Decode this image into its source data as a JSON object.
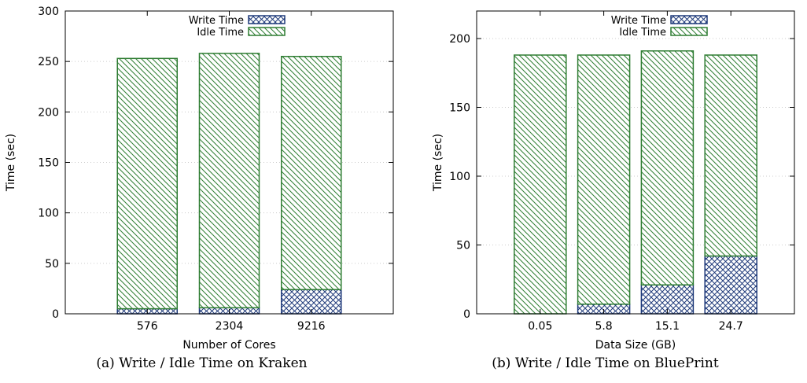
{
  "chart_data": [
    {
      "type": "bar",
      "stacked": true,
      "categories": [
        "576",
        "2304",
        "9216"
      ],
      "series": [
        {
          "name": "Write Time",
          "values": [
            5,
            6,
            24
          ],
          "color": "#1f3a7a",
          "pattern": "crosshatch"
        },
        {
          "name": "Idle Time",
          "values": [
            248,
            252,
            231
          ],
          "color": "#2e7d32",
          "pattern": "diagonal"
        }
      ],
      "xlabel": "Number of Cores",
      "ylabel": "Time (sec)",
      "ylim": [
        0,
        300
      ],
      "yticks": [
        0,
        50,
        100,
        150,
        200,
        250,
        300
      ],
      "grid": true,
      "legend": "top-center",
      "caption": "(a)  Write / Idle Time on Kraken"
    },
    {
      "type": "bar",
      "stacked": true,
      "categories": [
        "0.05",
        "5.8",
        "15.1",
        "24.7"
      ],
      "series": [
        {
          "name": "Write Time",
          "values": [
            0,
            7,
            21,
            42
          ],
          "color": "#1f3a7a",
          "pattern": "crosshatch"
        },
        {
          "name": "Idle Time",
          "values": [
            188,
            181,
            170,
            146
          ],
          "color": "#2e7d32",
          "pattern": "diagonal"
        }
      ],
      "xlabel": "Data Size (GB)",
      "ylabel": "Time (sec)",
      "ylim": [
        0,
        220
      ],
      "yticks": [
        0,
        50,
        100,
        150,
        200
      ],
      "grid": true,
      "legend": "top-center",
      "caption": "(b)  Write / Idle Time on BluePrint"
    }
  ]
}
